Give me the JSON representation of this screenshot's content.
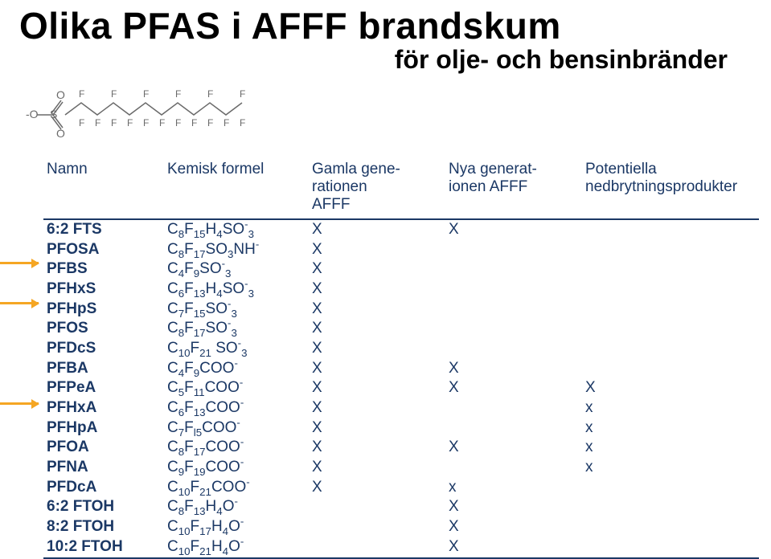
{
  "title": "Olika PFAS i AFFF brandskum",
  "subtitle": "för olje- och bensinbränder",
  "columns": {
    "name": "Namn",
    "formula": "Kemisk formel",
    "gam1": "Gamla gene-",
    "gam2": "rationen",
    "gam3": "AFFF",
    "nya1": "Nya generat-",
    "nya2": "ionen AFFF",
    "pot1": "Potentiella",
    "pot2": "nedbrytningsprodukter"
  },
  "rows": [
    {
      "name": "6:2 FTS",
      "formula_html": "C<span class='sub'>8</span>F<span class='sub'>15</span>H<span class='sub'>4</span>SO<span class='sup'>-</span><span class='sub'>3</span>",
      "gam": "X",
      "nya": "X",
      "pot": ""
    },
    {
      "name": "PFOSA",
      "formula_html": "C<span class='sub'>8</span>F<span class='sub'>17</span>SO<span class='sub'>3</span>NH<span class='sup'>-</span>",
      "gam": "X",
      "nya": "",
      "pot": ""
    },
    {
      "name": "PFBS",
      "formula_html": "C<span class='sub'>4</span>F<span class='sub'>9</span>SO<span class='sup'>-</span><span class='sub'>3</span>",
      "gam": "X",
      "nya": "",
      "pot": ""
    },
    {
      "name": "PFHxS",
      "formula_html": "C<span class='sub'>6</span>F<span class='sub'>13</span>H<span class='sub'>4</span>SO<span class='sup'>-</span><span class='sub'>3</span>",
      "gam": "X",
      "nya": "",
      "pot": ""
    },
    {
      "name": "PFHpS",
      "formula_html": "C<span class='sub'>7</span>F<span class='sub'>15</span>SO<span class='sup'>-</span><span class='sub'>3</span>",
      "gam": "X",
      "nya": "",
      "pot": ""
    },
    {
      "name": "PFOS",
      "formula_html": "C<span class='sub'>8</span>F<span class='sub'>17</span>SO<span class='sup'>-</span><span class='sub'>3</span>",
      "gam": "X",
      "nya": "",
      "pot": ""
    },
    {
      "name": "PFDcS",
      "formula_html": "C<span class='sub'>10</span>F<span class='sub'>21</span> SO<span class='sup'>-</span><span class='sub'>3</span>",
      "gam": "X",
      "nya": "",
      "pot": ""
    },
    {
      "name": "PFBA",
      "formula_html": "C<span class='sub'>4</span>F<span class='sub'>9</span>COO<span class='sup'>-</span>",
      "gam": "X",
      "nya": "X",
      "pot": ""
    },
    {
      "name": "PFPeA",
      "formula_html": "C<span class='sub'>5</span>F<span class='sub'>11</span>COO<span class='sup'>-</span>",
      "gam": "X",
      "nya": "X",
      "pot": "X"
    },
    {
      "name": "PFHxA",
      "formula_html": "C<span class='sub'>6</span>F<span class='sub'>13</span>COO<span class='sup'>-</span>",
      "gam": "X",
      "nya": "",
      "pot": "x"
    },
    {
      "name": "PFHpA",
      "formula_html": "C<span class='sub'>7</span>F<span class='sub'>l5</span>COO<span class='sup'>-</span>",
      "gam": "X",
      "nya": "",
      "pot": "x"
    },
    {
      "name": "PFOA",
      "formula_html": "C<span class='sub'>8</span>F<span class='sub'>17</span>COO<span class='sup'>-</span>",
      "gam": "X",
      "nya": "X",
      "pot": "x"
    },
    {
      "name": "PFNA",
      "formula_html": "C<span class='sub'>9</span>F<span class='sub'>19</span>COO<span class='sup'>-</span>",
      "gam": "X",
      "nya": "",
      "pot": "x"
    },
    {
      "name": "PFDcA",
      "formula_html": "C<span class='sub'>10</span>F<span class='sub'>21</span>COO<span class='sup'>-</span>",
      "gam": "X",
      "nya": "x",
      "pot": ""
    },
    {
      "name": "6:2 FTOH",
      "formula_html": "C<span class='sub'>8</span>F<span class='sub'>13</span>H<span class='sub'>4</span>O<span class='sup'>-</span>",
      "gam": "",
      "nya": "X",
      "pot": ""
    },
    {
      "name": "8:2 FTOH",
      "formula_html": "C<span class='sub'>10</span>F<span class='sub'>17</span>H<span class='sub'>4</span>O<span class='sup'>-</span>",
      "gam": "",
      "nya": "X",
      "pot": ""
    },
    {
      "name": "10:2 FTOH",
      "formula_html": "C<span class='sub'>10</span>F<span class='sub'>21</span>H<span class='sub'>4</span>O<span class='sup'>-</span>",
      "gam": "",
      "nya": "X",
      "pot": ""
    }
  ]
}
